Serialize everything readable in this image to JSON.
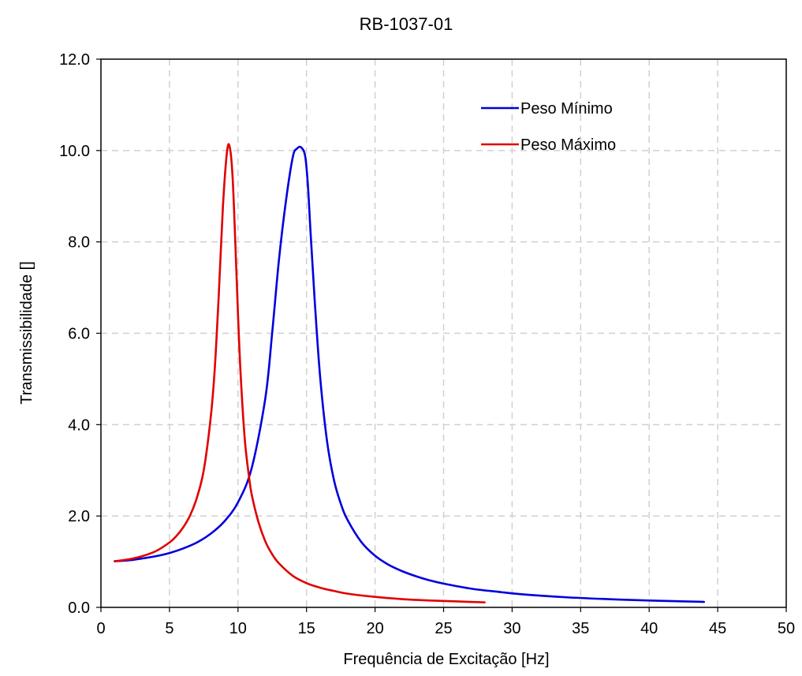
{
  "chart_data": {
    "type": "line",
    "title": "RB-1037-01",
    "xlabel": "Frequência de Excitação [Hz]",
    "ylabel": "Transmissibilidade []",
    "xlim": [
      0,
      50
    ],
    "ylim": [
      0,
      12
    ],
    "x_ticks": [
      "0",
      "5",
      "10",
      "15",
      "20",
      "25",
      "30",
      "35",
      "40",
      "45",
      "50"
    ],
    "y_ticks": [
      "0.0",
      "2.0",
      "4.0",
      "6.0",
      "8.0",
      "10.0",
      "12.0"
    ],
    "grid": true,
    "legend_position": "top-right",
    "series": [
      {
        "name": "Peso Mínimo",
        "color": "#0000dd",
        "x": [
          1,
          2,
          3,
          4,
          5,
          6,
          7,
          8,
          9,
          10,
          11,
          12,
          12.5,
          13,
          13.5,
          14,
          14.3,
          14.6,
          14.9,
          15.1,
          15.3,
          15.6,
          16,
          16.5,
          17,
          17.5,
          18,
          19,
          20,
          21,
          22,
          23,
          24,
          25,
          27,
          29,
          31,
          34,
          37,
          40,
          44
        ],
        "y": [
          1.01,
          1.03,
          1.07,
          1.12,
          1.19,
          1.29,
          1.42,
          1.61,
          1.88,
          2.3,
          3.05,
          4.59,
          6.03,
          7.64,
          8.9,
          9.86,
          10.04,
          10.07,
          9.88,
          9.24,
          8.18,
          6.7,
          5.02,
          3.63,
          2.79,
          2.27,
          1.91,
          1.43,
          1.13,
          0.93,
          0.79,
          0.68,
          0.59,
          0.52,
          0.41,
          0.34,
          0.28,
          0.22,
          0.18,
          0.15,
          0.12
        ]
      },
      {
        "name": "Peso Máximo",
        "color": "#e00000",
        "x": [
          1,
          2,
          3,
          4,
          5,
          5.5,
          6,
          6.5,
          7,
          7.5,
          8,
          8.3,
          8.6,
          8.9,
          9.2,
          9.4,
          9.6,
          9.8,
          10.0,
          10.2,
          10.5,
          10.8,
          11,
          11.5,
          12,
          12.5,
          13,
          14,
          15,
          16,
          17,
          18,
          20,
          22,
          24,
          26,
          28
        ],
        "y": [
          1.01,
          1.05,
          1.12,
          1.23,
          1.42,
          1.56,
          1.75,
          2.01,
          2.4,
          3.0,
          4.13,
          5.2,
          6.86,
          8.77,
          9.98,
          10.07,
          9.45,
          8.02,
          6.41,
          5.06,
          3.66,
          2.87,
          2.47,
          1.86,
          1.44,
          1.16,
          0.96,
          0.69,
          0.53,
          0.43,
          0.36,
          0.3,
          0.23,
          0.18,
          0.15,
          0.13,
          0.11
        ]
      }
    ]
  }
}
